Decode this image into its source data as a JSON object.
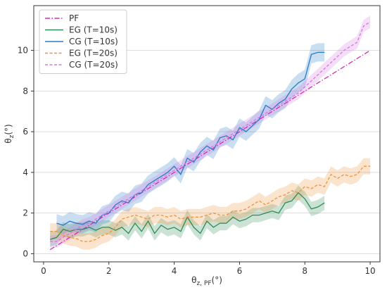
{
  "chart_data": {
    "type": "line",
    "xlabel": "θ",
    "xlabel_sub": "z, PF",
    "xlabel_unit": "(°)",
    "ylabel": "θ",
    "ylabel_sub": "z",
    "ylabel_unit": "(°)",
    "xlim": [
      -0.3,
      10.3
    ],
    "ylim": [
      -0.4,
      12.2
    ],
    "xticks": [
      0,
      2,
      4,
      6,
      8,
      10
    ],
    "yticks": [
      0,
      2,
      4,
      6,
      8,
      10
    ],
    "grid": "horizontal",
    "legend_position": "top-left",
    "series": [
      {
        "name": "PF",
        "color": "#d62cb4",
        "style": "dashdot",
        "x": [
          0.2,
          10.0
        ],
        "y": [
          0.2,
          10.0
        ]
      },
      {
        "name": "EG (T=10s)",
        "color": "#2e8b57",
        "style": "solid",
        "band": 0.35,
        "x": [
          0.2,
          0.4,
          0.6,
          0.8,
          1.0,
          1.2,
          1.4,
          1.6,
          1.8,
          2.0,
          2.2,
          2.4,
          2.6,
          2.8,
          3.0,
          3.2,
          3.4,
          3.6,
          3.8,
          4.0,
          4.2,
          4.4,
          4.6,
          4.8,
          5.0,
          5.2,
          5.4,
          5.6,
          5.8,
          6.0,
          6.2,
          6.4,
          6.6,
          6.8,
          7.0,
          7.2,
          7.4,
          7.6,
          7.8,
          8.0,
          8.2,
          8.4,
          8.6
        ],
        "y": [
          0.7,
          0.8,
          1.2,
          1.1,
          1.2,
          1.2,
          1.3,
          1.15,
          1.3,
          1.3,
          1.15,
          1.3,
          1.0,
          1.5,
          1.1,
          1.6,
          1.0,
          1.4,
          1.2,
          1.3,
          1.1,
          1.8,
          1.3,
          1.0,
          1.6,
          1.3,
          1.5,
          1.5,
          1.8,
          1.6,
          1.7,
          1.9,
          1.9,
          2.0,
          2.1,
          2.0,
          2.5,
          2.6,
          3.0,
          2.7,
          2.2,
          2.3,
          2.5
        ]
      },
      {
        "name": "CG (T=10s)",
        "color": "#2a7ac8",
        "style": "solid",
        "band": 0.45,
        "x": [
          0.4,
          0.6,
          0.8,
          1.0,
          1.2,
          1.4,
          1.6,
          1.8,
          2.0,
          2.2,
          2.4,
          2.6,
          2.8,
          3.0,
          3.2,
          3.4,
          3.6,
          3.8,
          4.0,
          4.2,
          4.4,
          4.6,
          4.8,
          5.0,
          5.2,
          5.4,
          5.6,
          5.8,
          6.0,
          6.2,
          6.4,
          6.6,
          6.8,
          7.0,
          7.2,
          7.4,
          7.6,
          7.8,
          8.0,
          8.2,
          8.4,
          8.6
        ],
        "y": [
          1.5,
          1.4,
          1.6,
          1.5,
          1.45,
          1.6,
          1.5,
          1.9,
          2.0,
          2.4,
          2.6,
          2.5,
          2.9,
          3.0,
          3.4,
          3.6,
          3.8,
          4.0,
          4.3,
          3.9,
          4.7,
          4.5,
          5.0,
          5.3,
          5.1,
          5.7,
          5.8,
          5.6,
          6.2,
          6.0,
          6.3,
          6.6,
          7.3,
          7.1,
          7.4,
          7.6,
          8.1,
          8.4,
          8.6,
          9.8,
          9.9,
          9.9
        ]
      },
      {
        "name": "EG (T=20s)",
        "color": "#f0923a",
        "style": "dashed",
        "band": 0.4,
        "x": [
          0.2,
          0.4,
          0.6,
          0.8,
          1.0,
          1.2,
          1.4,
          1.6,
          1.8,
          2.0,
          2.2,
          2.4,
          2.6,
          2.8,
          3.0,
          3.2,
          3.4,
          3.6,
          3.8,
          4.0,
          4.2,
          4.4,
          4.6,
          4.8,
          5.0,
          5.2,
          5.4,
          5.6,
          5.8,
          6.0,
          6.2,
          6.4,
          6.6,
          6.8,
          7.0,
          7.2,
          7.4,
          7.6,
          7.8,
          8.0,
          8.2,
          8.4,
          8.6,
          8.8,
          9.0,
          9.2,
          9.4,
          9.6,
          9.8,
          10.0
        ],
        "y": [
          1.1,
          1.1,
          0.9,
          0.8,
          0.75,
          0.6,
          0.6,
          0.7,
          0.9,
          1.0,
          1.3,
          1.7,
          1.8,
          1.9,
          1.8,
          1.7,
          1.9,
          1.9,
          1.8,
          1.9,
          1.7,
          1.8,
          1.8,
          1.8,
          1.9,
          2.0,
          1.9,
          1.9,
          2.1,
          2.1,
          2.2,
          2.4,
          2.6,
          2.4,
          2.6,
          2.8,
          2.9,
          3.1,
          3.0,
          3.3,
          3.2,
          3.4,
          3.3,
          3.9,
          3.7,
          3.9,
          3.8,
          3.9,
          4.3,
          4.3
        ]
      },
      {
        "name": "CG (T=20s)",
        "color": "#d577e0",
        "style": "dashed",
        "band": 0.3,
        "x": [
          0.2,
          0.4,
          0.6,
          0.8,
          1.0,
          1.2,
          1.4,
          1.6,
          1.8,
          2.0,
          2.2,
          2.4,
          2.6,
          2.8,
          3.0,
          3.2,
          3.4,
          3.6,
          3.8,
          4.0,
          4.2,
          4.4,
          4.6,
          4.8,
          5.0,
          5.2,
          5.4,
          5.6,
          5.8,
          6.0,
          6.2,
          6.4,
          6.6,
          6.8,
          7.0,
          7.2,
          7.4,
          7.6,
          7.8,
          8.0,
          8.2,
          8.4,
          8.6,
          8.8,
          9.0,
          9.2,
          9.4,
          9.6,
          9.8,
          10.0
        ],
        "y": [
          0.6,
          0.6,
          0.8,
          1.0,
          1.2,
          1.4,
          1.5,
          1.7,
          1.9,
          2.1,
          2.3,
          2.5,
          2.7,
          2.9,
          3.1,
          3.3,
          3.5,
          3.7,
          3.9,
          4.1,
          4.3,
          4.5,
          4.7,
          4.9,
          5.1,
          5.3,
          5.5,
          5.7,
          5.9,
          6.1,
          6.3,
          6.5,
          6.7,
          6.9,
          7.1,
          7.3,
          7.5,
          7.7,
          7.9,
          8.2,
          8.5,
          8.8,
          9.1,
          9.4,
          9.7,
          10.0,
          10.2,
          10.4,
          11.2,
          11.4
        ]
      }
    ]
  }
}
